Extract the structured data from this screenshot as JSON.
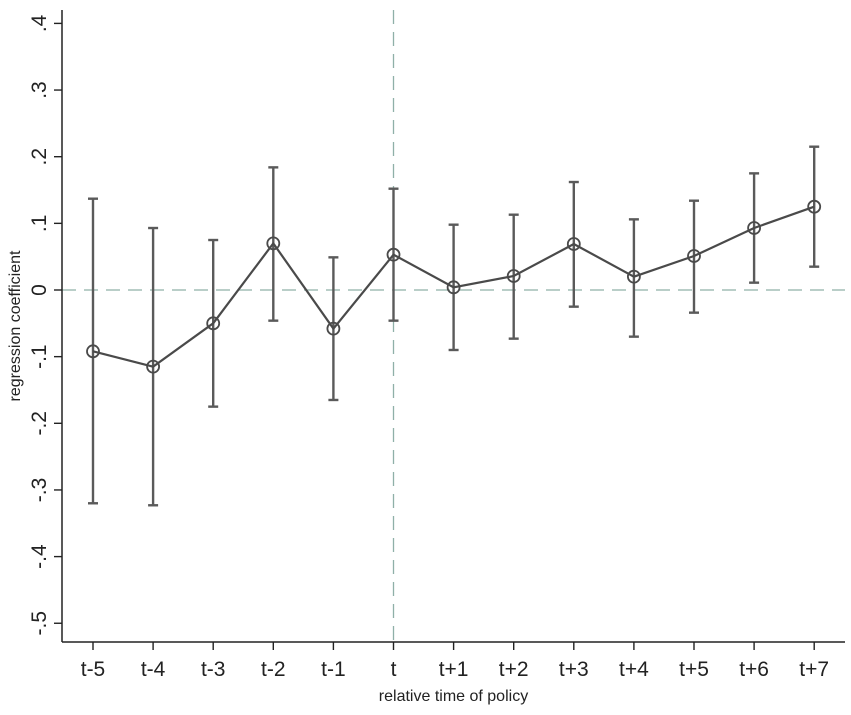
{
  "chart_data": {
    "type": "line",
    "title": "",
    "xlabel": "relative time of policy",
    "ylabel": "regression coefficient",
    "categories": [
      "t-5",
      "t-4",
      "t-3",
      "t-2",
      "t-1",
      "t",
      "t+1",
      "t+2",
      "t+3",
      "t+4",
      "t+5",
      "t+6",
      "t+7"
    ],
    "values": [
      -0.092,
      -0.115,
      -0.05,
      0.07,
      -0.058,
      0.053,
      0.004,
      0.021,
      0.069,
      0.02,
      0.051,
      0.093,
      0.125
    ],
    "ci_upper": [
      0.137,
      0.093,
      0.075,
      0.184,
      0.049,
      0.152,
      0.098,
      0.113,
      0.162,
      0.106,
      0.134,
      0.175,
      0.215
    ],
    "ci_lower": [
      -0.32,
      -0.323,
      -0.175,
      -0.046,
      -0.165,
      -0.046,
      -0.09,
      -0.073,
      -0.025,
      -0.07,
      -0.034,
      0.011,
      0.035
    ],
    "yticks": [
      0.4,
      0.3,
      0.2,
      0.1,
      0,
      -0.1,
      -0.2,
      -0.3,
      -0.4,
      -0.5
    ],
    "ytick_labels": [
      ".4",
      ".3",
      ".2",
      ".1",
      "0",
      "-.1",
      "-.2",
      "-.3",
      "-.4",
      "-.5"
    ],
    "ylim": [
      -0.52,
      0.42
    ],
    "reference_lines": {
      "horizontal_y": 0,
      "vertical_category": "t"
    },
    "grid": false,
    "legend": "none",
    "colors": {
      "series": "#4a4a4a",
      "ci": "#5a5a5a",
      "reference": "#8fb0a8",
      "axis": "#222222"
    }
  }
}
